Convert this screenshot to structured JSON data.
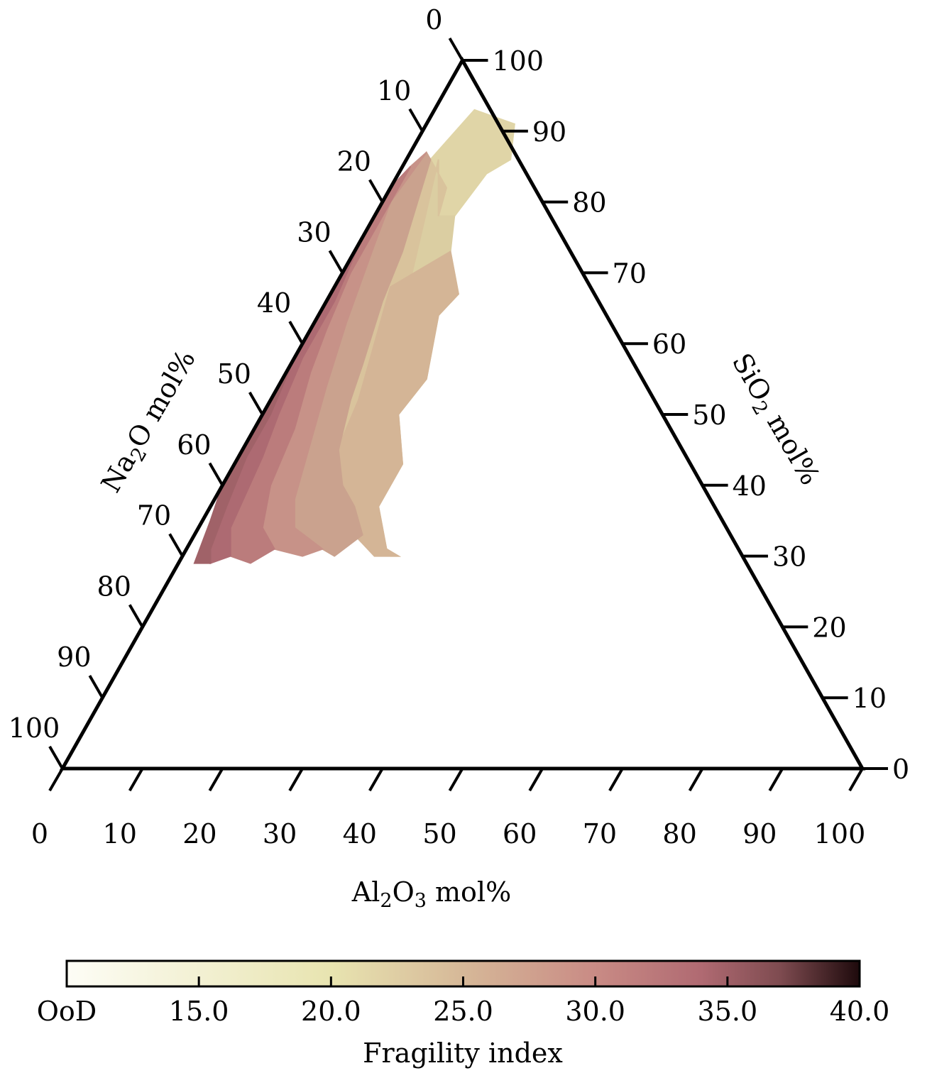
{
  "chart_data": {
    "type": "heatmap",
    "subtype": "ternary-hexbin",
    "axes": {
      "bottom": {
        "component": "Al2O3",
        "title_main": "Al",
        "title_sub1": "2",
        "title_mid": "O",
        "title_sub2": "3",
        "title_suffix": " mol%",
        "ticks": [
          "0",
          "10",
          "20",
          "30",
          "40",
          "50",
          "60",
          "70",
          "80",
          "90",
          "100"
        ],
        "range": [
          0,
          100
        ]
      },
      "left": {
        "component": "Na2O",
        "title_main": "Na",
        "title_sub1": "2",
        "title_suffix": "O mol%",
        "ticks": [
          "0",
          "10",
          "20",
          "30",
          "40",
          "50",
          "60",
          "70",
          "80",
          "90",
          "100"
        ],
        "range": [
          0,
          100
        ]
      },
      "right": {
        "component": "SiO2",
        "title_main": "SiO",
        "title_sub1": "2",
        "title_suffix": " mol%",
        "ticks": [
          "0",
          "10",
          "20",
          "30",
          "40",
          "50",
          "60",
          "70",
          "80",
          "90",
          "100"
        ],
        "range": [
          0,
          100
        ]
      }
    },
    "colorbar": {
      "title": "Fragility index",
      "ticks": [
        "OoD",
        "15.0",
        "20.0",
        "25.0",
        "30.0",
        "35.0",
        "40.0"
      ],
      "range": [
        10,
        40
      ],
      "colors": [
        "#fdfdf6",
        "#e8e4b0",
        "#d6b898",
        "#c98b85",
        "#b06a72",
        "#7e4b50",
        "#1e0a0c"
      ],
      "ood_label": "OoD"
    },
    "regions": [
      {
        "fragility": 20.0,
        "color": "#e7e5b3",
        "vertices": [
          [
            6,
            91
          ],
          [
            11,
            91
          ],
          [
            13,
            86
          ],
          [
            11,
            84
          ],
          [
            10,
            78
          ],
          [
            8,
            78
          ]
        ]
      },
      {
        "fragility": 21.0,
        "color": "#e0d5a7",
        "vertices": [
          [
            5,
            93
          ],
          [
            11,
            91
          ],
          [
            13,
            86
          ],
          [
            11,
            84
          ],
          [
            10,
            78
          ],
          [
            8,
            78
          ],
          [
            7,
            82
          ],
          [
            3,
            86
          ]
        ]
      },
      {
        "fragility": 22.0,
        "color": "#dbcea2",
        "vertices": [
          [
            4,
            86
          ],
          [
            8,
            78
          ],
          [
            10,
            78
          ],
          [
            12,
            73
          ],
          [
            16,
            67
          ],
          [
            15,
            64
          ],
          [
            18,
            55
          ],
          [
            17,
            50
          ],
          [
            13,
            55
          ],
          [
            9,
            69
          ]
        ]
      },
      {
        "fragility": 23.0,
        "color": "#d9c39c",
        "vertices": [
          [
            3,
            86
          ],
          [
            7,
            82
          ],
          [
            8,
            78
          ],
          [
            4,
            86
          ],
          [
            9,
            69
          ],
          [
            13,
            55
          ],
          [
            17,
            50
          ],
          [
            21,
            43
          ],
          [
            21,
            37
          ],
          [
            25,
            31
          ],
          [
            27,
            30
          ],
          [
            26,
            30
          ],
          [
            21,
            33
          ],
          [
            18,
            37
          ],
          [
            15,
            40
          ],
          [
            12,
            45
          ],
          [
            10,
            52
          ],
          [
            9,
            57
          ],
          [
            7,
            66
          ],
          [
            6,
            73
          ]
        ]
      },
      {
        "fragility": 24.0,
        "color": "#d4b596",
        "vertices": [
          [
            12,
            73
          ],
          [
            16,
            67
          ],
          [
            15,
            64
          ],
          [
            18,
            55
          ],
          [
            17,
            50
          ],
          [
            21,
            43
          ],
          [
            21,
            37
          ],
          [
            25,
            31
          ],
          [
            27,
            30
          ],
          [
            24,
            30
          ],
          [
            20,
            33
          ],
          [
            15,
            38
          ],
          [
            12,
            44
          ],
          [
            11,
            52
          ],
          [
            10,
            56
          ],
          [
            8,
            64
          ],
          [
            7,
            68
          ]
        ]
      },
      {
        "fragility": 26.0,
        "color": "#caa28e",
        "vertices": [
          [
            2,
            87
          ],
          [
            3,
            86
          ],
          [
            6,
            73
          ],
          [
            7,
            66
          ],
          [
            9,
            57
          ],
          [
            10,
            52
          ],
          [
            12,
            45
          ],
          [
            15,
            40
          ],
          [
            18,
            37
          ],
          [
            21,
            33
          ],
          [
            19,
            30
          ],
          [
            17,
            31
          ],
          [
            12,
            34
          ],
          [
            10,
            38
          ],
          [
            8,
            46
          ],
          [
            6,
            54
          ],
          [
            4,
            63
          ],
          [
            2,
            74
          ],
          [
            1,
            80
          ]
        ]
      },
      {
        "fragility": 28.0,
        "color": "#c79288",
        "vertices": [
          [
            1,
            85
          ],
          [
            2,
            87
          ],
          [
            1,
            80
          ],
          [
            2,
            74
          ],
          [
            4,
            63
          ],
          [
            6,
            54
          ],
          [
            8,
            46
          ],
          [
            10,
            38
          ],
          [
            12,
            34
          ],
          [
            17,
            31
          ],
          [
            15,
            30
          ],
          [
            11,
            31
          ],
          [
            8,
            34
          ],
          [
            6,
            40
          ],
          [
            5,
            48
          ],
          [
            3,
            56
          ],
          [
            2,
            62
          ],
          [
            1,
            70
          ]
        ]
      },
      {
        "fragility": 30.0,
        "color": "#bb7c7c",
        "vertices": [
          [
            0,
            82
          ],
          [
            1,
            85
          ],
          [
            1,
            70
          ],
          [
            2,
            62
          ],
          [
            3,
            56
          ],
          [
            5,
            48
          ],
          [
            6,
            40
          ],
          [
            8,
            34
          ],
          [
            11,
            31
          ],
          [
            9,
            29
          ],
          [
            6,
            30
          ],
          [
            4,
            34
          ],
          [
            3,
            44
          ],
          [
            2,
            50
          ],
          [
            1,
            58
          ],
          [
            1,
            66
          ],
          [
            0,
            75
          ]
        ]
      },
      {
        "fragility": 32.0,
        "color": "#ad6a72",
        "vertices": [
          [
            0,
            75
          ],
          [
            1,
            66
          ],
          [
            1,
            58
          ],
          [
            2,
            50
          ],
          [
            3,
            44
          ],
          [
            4,
            34
          ],
          [
            6,
            30
          ],
          [
            4,
            29
          ],
          [
            3,
            31
          ],
          [
            2,
            37
          ],
          [
            1,
            44
          ],
          [
            1,
            50
          ],
          [
            0,
            58
          ],
          [
            0,
            63
          ]
        ]
      },
      {
        "fragility": 34.0,
        "color": "#a06268",
        "vertices": [
          [
            0,
            63
          ],
          [
            0,
            58
          ],
          [
            1,
            50
          ],
          [
            1,
            44
          ],
          [
            2,
            37
          ],
          [
            3,
            31
          ],
          [
            4,
            29
          ],
          [
            2,
            29
          ],
          [
            1,
            35
          ],
          [
            0,
            40
          ],
          [
            0,
            50
          ]
        ]
      }
    ]
  }
}
